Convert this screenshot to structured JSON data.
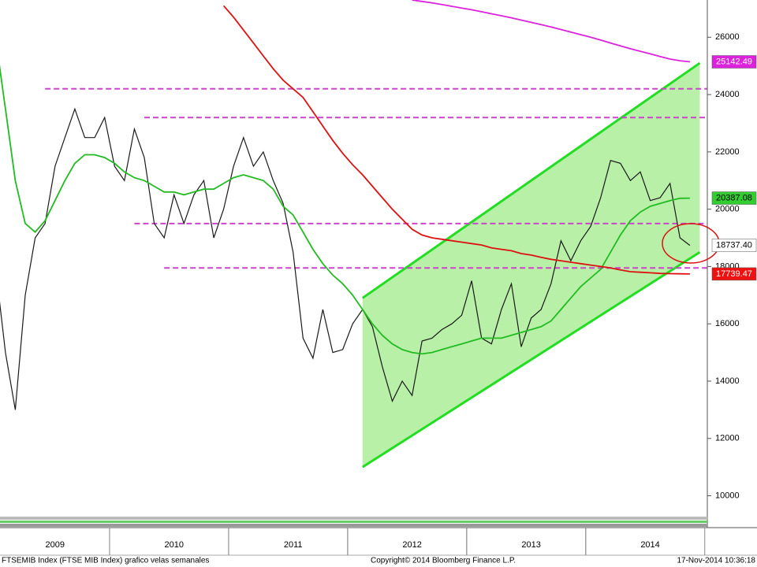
{
  "chart_data": {
    "type": "line",
    "categories": [
      null,
      null,
      null,
      null,
      null,
      null,
      "2009",
      null,
      null,
      null,
      null,
      null,
      null,
      null,
      null,
      null,
      null,
      null,
      "2010",
      null,
      null,
      null,
      null,
      null,
      null,
      null,
      null,
      null,
      null,
      null,
      "2011",
      null,
      null,
      null,
      null,
      null,
      null,
      null,
      null,
      null,
      null,
      null,
      "2012",
      null,
      null,
      null,
      null,
      null,
      null,
      null,
      null,
      null,
      null,
      null,
      "2013",
      null,
      null,
      null,
      null,
      null,
      null,
      null,
      null,
      null,
      null,
      null,
      "2014",
      null,
      null,
      null,
      null
    ],
    "ylim": [
      9300,
      27300
    ],
    "yticks": [
      10000,
      12000,
      14000,
      16000,
      18000,
      20000,
      22000,
      24000,
      26000
    ],
    "series": [
      {
        "color": "#1a1a1a",
        "label_bg": "#ffffff",
        "label_fg": "#000000",
        "last_label": "18737.40",
        "values": [
          18000,
          15000,
          13000,
          17000,
          19000,
          19500,
          21500,
          22500,
          23500,
          22500,
          22500,
          23200,
          21500,
          21000,
          22800,
          21800,
          19500,
          19000,
          20500,
          19500,
          20500,
          21000,
          19000,
          20000,
          21500,
          22500,
          21500,
          22000,
          21000,
          20200,
          18500,
          15500,
          14800,
          16500,
          15000,
          15100,
          16000,
          16500,
          15900,
          14500,
          13300,
          14000,
          13500,
          15400,
          15500,
          15800,
          16000,
          16300,
          17500,
          15500,
          15300,
          16500,
          17400,
          15200,
          16200,
          16500,
          17400,
          18900,
          18200,
          18900,
          19400,
          20400,
          21700,
          21600,
          21000,
          21300,
          20300,
          20400,
          20900,
          19000,
          18737.4
        ]
      },
      {
        "color": "#22bb22",
        "label_bg": "#33cc33",
        "label_fg": "#000000",
        "last_label": "20387.08",
        "values": [
          26000,
          23500,
          21000,
          19500,
          19200,
          19600,
          20300,
          21000,
          21600,
          21900,
          21900,
          21800,
          21600,
          21300,
          21100,
          21000,
          20800,
          20600,
          20600,
          20500,
          20600,
          20700,
          20700,
          20900,
          21100,
          21200,
          21100,
          21000,
          20700,
          20100,
          19800,
          19200,
          18600,
          18100,
          17700,
          17400,
          17000,
          16500,
          16000,
          15600,
          15300,
          15100,
          15000,
          14950,
          15000,
          15100,
          15200,
          15300,
          15400,
          15500,
          15500,
          15500,
          15600,
          15700,
          15800,
          15900,
          16100,
          16500,
          16900,
          17300,
          17600,
          17900,
          18500,
          19100,
          19600,
          19900,
          20100,
          20200,
          20300,
          20380,
          20387.08
        ]
      },
      {
        "color": "#dd1111",
        "label_bg": "#ee1111",
        "label_fg": "#ffffff",
        "last_label": "17739.47",
        "values": [
          null,
          null,
          null,
          null,
          null,
          null,
          null,
          null,
          null,
          null,
          null,
          null,
          null,
          null,
          null,
          null,
          null,
          null,
          null,
          null,
          null,
          null,
          null,
          27100,
          26700,
          26250,
          25800,
          25350,
          24900,
          24500,
          24200,
          23900,
          23400,
          22900,
          22400,
          21950,
          21550,
          21200,
          20800,
          20400,
          20000,
          19650,
          19300,
          19100,
          19000,
          18950,
          18900,
          18850,
          18800,
          18750,
          18650,
          18600,
          18550,
          18450,
          18400,
          18320,
          18250,
          18200,
          18150,
          18100,
          18050,
          18000,
          17950,
          17880,
          17820,
          17800,
          17780,
          17760,
          17750,
          17745,
          17739.47
        ]
      },
      {
        "color": "#dd22dd",
        "label_bg": "#dd22dd",
        "label_fg": "#ffffff",
        "last_label": "25142.49",
        "values": [
          null,
          null,
          null,
          null,
          null,
          null,
          null,
          null,
          null,
          null,
          null,
          null,
          null,
          null,
          null,
          null,
          null,
          null,
          null,
          null,
          null,
          null,
          null,
          null,
          null,
          null,
          null,
          null,
          null,
          null,
          null,
          null,
          null,
          null,
          null,
          null,
          null,
          null,
          null,
          null,
          null,
          null,
          27300,
          27250,
          27200,
          27140,
          27080,
          27020,
          26960,
          26890,
          26820,
          26750,
          26680,
          26600,
          26520,
          26440,
          26360,
          26270,
          26180,
          26090,
          26000,
          25900,
          25800,
          25700,
          25600,
          25510,
          25420,
          25330,
          25240,
          25180,
          25142.49
        ]
      }
    ],
    "channel": {
      "line_color": "#22dd22",
      "fill": "#b8f0a8",
      "start": 37,
      "end": 71,
      "lower": [
        11000,
        18500
      ],
      "upper": [
        16900,
        25100
      ]
    },
    "hlines": {
      "color": "#cc44cc",
      "lines": [
        {
          "value": 24200,
          "start": 5
        },
        {
          "value": 23200,
          "start": 15
        },
        {
          "value": 19500,
          "start": 14
        },
        {
          "value": 17950,
          "start": 17
        }
      ]
    },
    "footer": {
      "left": "FTSEMIB Index (FTSE MIB Index) grafico velas semanales",
      "center": "Copyright© 2014 Bloomberg Finance L.P.",
      "right": "17-Nov-2014 10:36:18"
    }
  }
}
